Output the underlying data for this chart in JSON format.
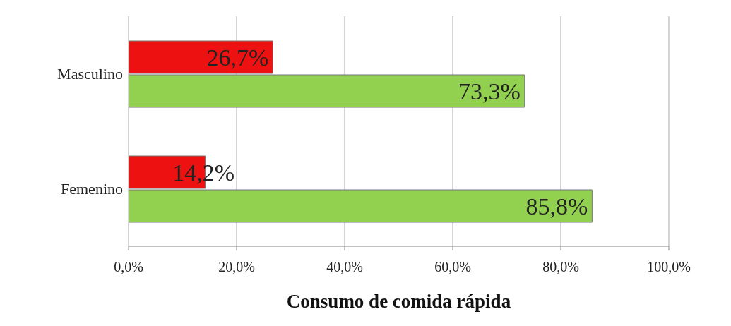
{
  "chart_data": {
    "type": "bar",
    "orientation": "horizontal",
    "xlabel": "Consumo de comida rápida",
    "categories": [
      "Masculino",
      "Femenino"
    ],
    "series": [
      {
        "color": "#ee1111",
        "values": [
          26.7,
          14.2
        ],
        "value_labels": [
          "26,7%",
          "14,2%"
        ]
      },
      {
        "color": "#92d050",
        "values": [
          73.3,
          85.8
        ],
        "value_labels": [
          "73,3%",
          "85,8%"
        ]
      }
    ],
    "xlim": [
      0,
      100
    ],
    "xticks": [
      {
        "value": 0,
        "label": "0,0%"
      },
      {
        "value": 20,
        "label": "20,0%"
      },
      {
        "value": 40,
        "label": "40,0%"
      },
      {
        "value": 60,
        "label": "60,0%"
      },
      {
        "value": 80,
        "label": "80,0%"
      },
      {
        "value": 100,
        "label": "100,0%"
      }
    ],
    "grid": "x"
  }
}
